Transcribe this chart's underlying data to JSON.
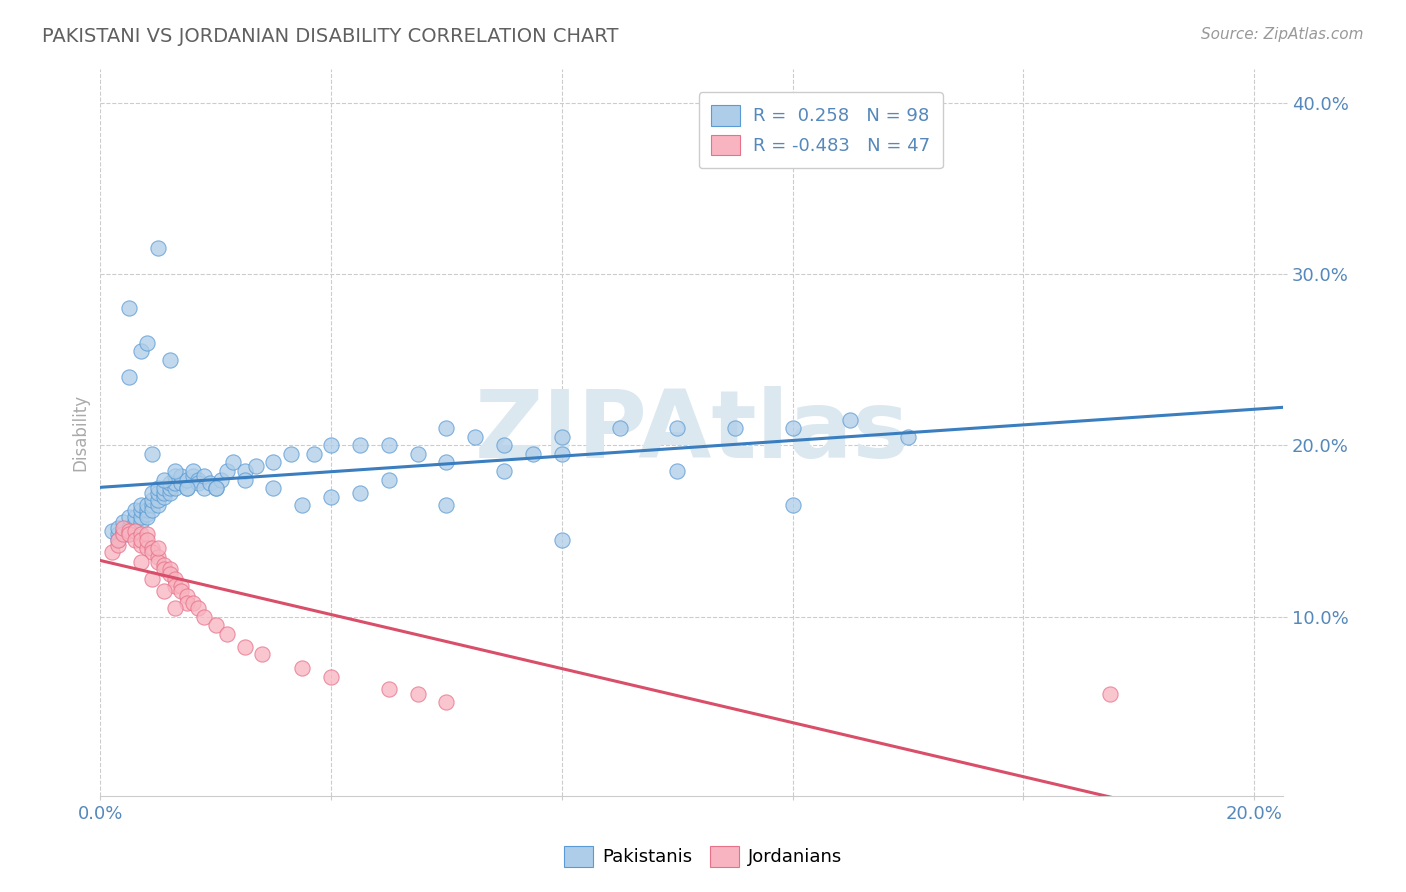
{
  "title": "PAKISTANI VS JORDANIAN DISABILITY CORRELATION CHART",
  "source_text": "Source: ZipAtlas.com",
  "ylabel": "Disability",
  "xlim": [
    0.0,
    0.205
  ],
  "ylim": [
    -0.005,
    0.42
  ],
  "xticks": [
    0.0,
    0.04,
    0.08,
    0.12,
    0.16,
    0.2
  ],
  "xtick_labels": [
    "0.0%",
    "",
    "",
    "",
    "",
    "20.0%"
  ],
  "yticks": [
    0.1,
    0.2,
    0.3,
    0.4
  ],
  "ytick_labels": [
    "10.0%",
    "20.0%",
    "30.0%",
    "40.0%"
  ],
  "blue_R": 0.258,
  "blue_N": 98,
  "pink_R": -0.483,
  "pink_N": 47,
  "blue_color": "#aecde8",
  "pink_color": "#f8b4c0",
  "blue_edge_color": "#5b9bd5",
  "pink_edge_color": "#e8718a",
  "blue_line_color": "#3a7ebf",
  "pink_line_color": "#d94f6a",
  "watermark_color": "#dce8f0",
  "background_color": "#ffffff",
  "grid_color": "#cccccc",
  "title_color": "#606060",
  "axis_label_color": "#5588bb",
  "ylabel_color": "#aaaaaa",
  "legend_label_1": "Pakistanis",
  "legend_label_2": "Jordanians",
  "blue_x": [
    0.002,
    0.003,
    0.003,
    0.003,
    0.004,
    0.004,
    0.004,
    0.005,
    0.005,
    0.005,
    0.006,
    0.006,
    0.006,
    0.006,
    0.007,
    0.007,
    0.007,
    0.007,
    0.008,
    0.008,
    0.008,
    0.008,
    0.009,
    0.009,
    0.009,
    0.009,
    0.01,
    0.01,
    0.01,
    0.01,
    0.011,
    0.011,
    0.011,
    0.012,
    0.012,
    0.012,
    0.013,
    0.013,
    0.013,
    0.014,
    0.014,
    0.015,
    0.015,
    0.016,
    0.016,
    0.017,
    0.017,
    0.018,
    0.018,
    0.019,
    0.02,
    0.021,
    0.022,
    0.023,
    0.025,
    0.027,
    0.03,
    0.033,
    0.037,
    0.04,
    0.045,
    0.05,
    0.055,
    0.06,
    0.065,
    0.07,
    0.075,
    0.08,
    0.09,
    0.1,
    0.11,
    0.12,
    0.13,
    0.14,
    0.005,
    0.007,
    0.009,
    0.011,
    0.013,
    0.015,
    0.02,
    0.025,
    0.03,
    0.04,
    0.05,
    0.06,
    0.07,
    0.08,
    0.035,
    0.045,
    0.005,
    0.008,
    0.01,
    0.012,
    0.06,
    0.08,
    0.1,
    0.12
  ],
  "blue_y": [
    0.15,
    0.148,
    0.145,
    0.152,
    0.15,
    0.148,
    0.155,
    0.152,
    0.148,
    0.158,
    0.155,
    0.15,
    0.158,
    0.162,
    0.155,
    0.158,
    0.162,
    0.165,
    0.16,
    0.162,
    0.158,
    0.165,
    0.165,
    0.162,
    0.168,
    0.172,
    0.165,
    0.168,
    0.172,
    0.175,
    0.17,
    0.172,
    0.175,
    0.172,
    0.175,
    0.178,
    0.175,
    0.178,
    0.182,
    0.178,
    0.182,
    0.175,
    0.18,
    0.182,
    0.185,
    0.18,
    0.178,
    0.175,
    0.182,
    0.178,
    0.175,
    0.18,
    0.185,
    0.19,
    0.185,
    0.188,
    0.19,
    0.195,
    0.195,
    0.2,
    0.2,
    0.2,
    0.195,
    0.21,
    0.205,
    0.2,
    0.195,
    0.205,
    0.21,
    0.21,
    0.21,
    0.21,
    0.215,
    0.205,
    0.24,
    0.255,
    0.195,
    0.18,
    0.185,
    0.175,
    0.175,
    0.18,
    0.175,
    0.17,
    0.18,
    0.19,
    0.185,
    0.195,
    0.165,
    0.172,
    0.28,
    0.26,
    0.315,
    0.25,
    0.165,
    0.145,
    0.185,
    0.165
  ],
  "pink_x": [
    0.002,
    0.003,
    0.003,
    0.004,
    0.004,
    0.005,
    0.005,
    0.006,
    0.006,
    0.007,
    0.007,
    0.007,
    0.008,
    0.008,
    0.008,
    0.009,
    0.009,
    0.01,
    0.01,
    0.01,
    0.011,
    0.011,
    0.012,
    0.012,
    0.013,
    0.013,
    0.014,
    0.014,
    0.015,
    0.015,
    0.016,
    0.017,
    0.018,
    0.02,
    0.022,
    0.025,
    0.028,
    0.035,
    0.04,
    0.05,
    0.055,
    0.06,
    0.175,
    0.007,
    0.009,
    0.011,
    0.013
  ],
  "pink_y": [
    0.138,
    0.142,
    0.145,
    0.148,
    0.152,
    0.15,
    0.148,
    0.15,
    0.145,
    0.148,
    0.142,
    0.145,
    0.148,
    0.14,
    0.145,
    0.14,
    0.138,
    0.135,
    0.132,
    0.14,
    0.13,
    0.128,
    0.128,
    0.125,
    0.122,
    0.118,
    0.118,
    0.115,
    0.112,
    0.108,
    0.108,
    0.105,
    0.1,
    0.095,
    0.09,
    0.082,
    0.078,
    0.07,
    0.065,
    0.058,
    0.055,
    0.05,
    0.055,
    0.132,
    0.122,
    0.115,
    0.105
  ]
}
